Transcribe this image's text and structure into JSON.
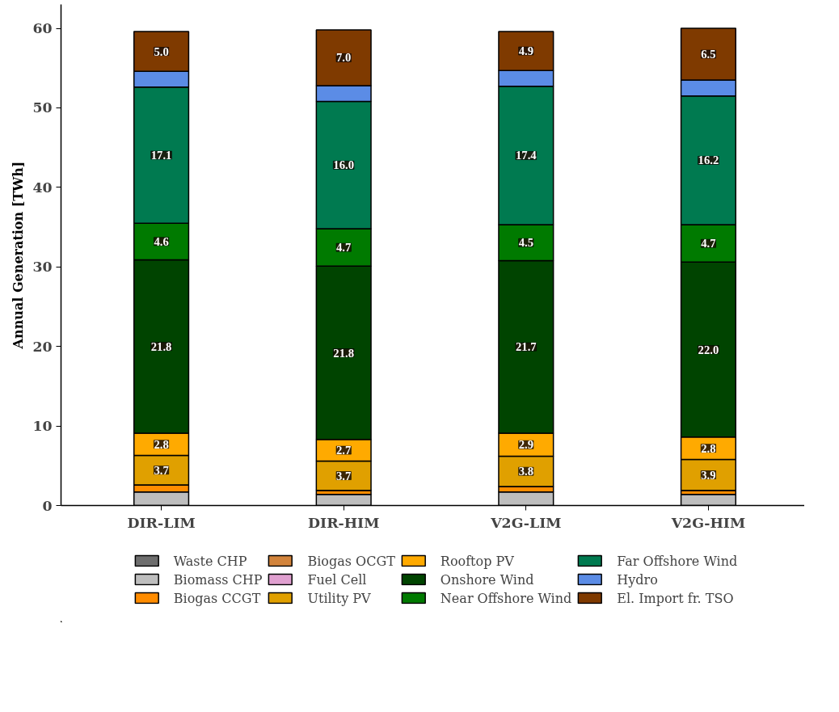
{
  "chart_data": {
    "type": "bar",
    "stacked": true,
    "ylabel": "Annual Generation [TWh]",
    "categories": [
      "DIR-LIM",
      "DIR-HIM",
      "V2G-LIM",
      "V2G-HIM"
    ],
    "ylim": [
      0,
      63
    ],
    "yticks": [
      0,
      10,
      20,
      30,
      40,
      50,
      60
    ],
    "grid": false,
    "legend": "bottom",
    "series": [
      {
        "name": "Waste CHP",
        "color": "#6e6e6e",
        "values": [
          null,
          null,
          null,
          null
        ]
      },
      {
        "name": "Biomass CHP",
        "color": "#bebebe",
        "values": [
          1.7,
          1.4,
          1.7,
          1.4
        ]
      },
      {
        "name": "Biogas CCGT",
        "color": "#ff8c00",
        "values": [
          0.9,
          0.5,
          0.7,
          0.5
        ]
      },
      {
        "name": "Biogas OCGT",
        "color": "#d2843c",
        "values": [
          0,
          0,
          0,
          0
        ]
      },
      {
        "name": "Fuel Cell",
        "color": "#e0a0d0",
        "values": [
          0,
          0,
          0,
          0
        ]
      },
      {
        "name": "Utility PV",
        "color": "#e0a000",
        "values": [
          3.7,
          3.7,
          3.8,
          3.9
        ],
        "value_labels": [
          "3.7",
          "3.7",
          "3.8",
          "3.9"
        ]
      },
      {
        "name": "Rooftop PV",
        "color": "#ffaa00",
        "values": [
          2.8,
          2.7,
          2.9,
          2.8
        ],
        "value_labels": [
          "2.8",
          "2.7",
          "2.9",
          "2.8"
        ]
      },
      {
        "name": "Onshore Wind",
        "color": "#004400",
        "values": [
          21.8,
          21.8,
          21.7,
          22.0
        ],
        "value_labels": [
          "21.8",
          "21.8",
          "21.7",
          "22.0"
        ]
      },
      {
        "name": "Near Offshore Wind",
        "color": "#007a00",
        "values": [
          4.6,
          4.7,
          4.5,
          4.7
        ],
        "value_labels": [
          "4.6",
          "4.7",
          "4.5",
          "4.7"
        ]
      },
      {
        "name": "Far Offshore Wind",
        "color": "#007a50",
        "values": [
          17.1,
          16.0,
          17.4,
          16.2
        ],
        "value_labels": [
          "17.1",
          "16.0",
          "17.4",
          "16.2"
        ]
      },
      {
        "name": "Hydro",
        "color": "#5b8ce6",
        "values": [
          2.0,
          2.0,
          2.0,
          2.0
        ]
      },
      {
        "name": "El. Import fr. TSO",
        "color": "#7f3a00",
        "values": [
          5.0,
          7.0,
          4.9,
          6.5
        ],
        "value_labels": [
          "5.0",
          "7.0",
          "4.9",
          "6.5"
        ]
      }
    ]
  }
}
